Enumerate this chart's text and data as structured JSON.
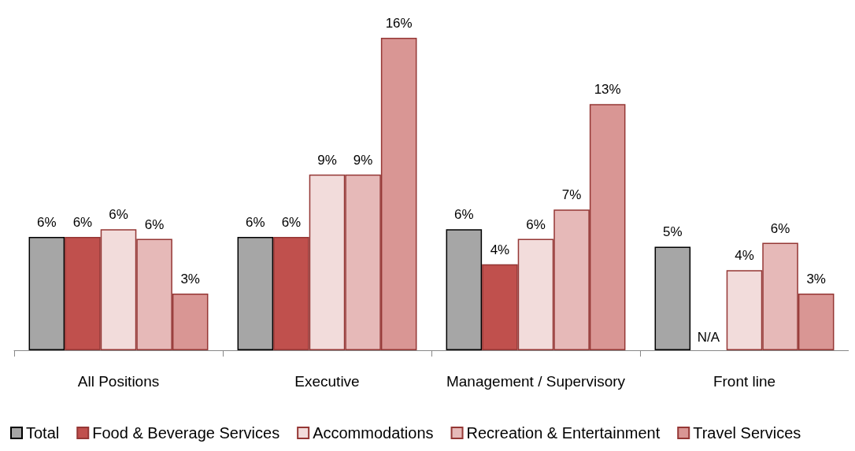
{
  "chart_data": {
    "type": "bar",
    "categories": [
      "All Positions",
      "Executive",
      "Management / Supervisory",
      "Front line"
    ],
    "series": [
      {
        "name": "Total",
        "color": "#a6a6a6",
        "values": [
          5.8,
          5.8,
          6.2,
          5.3
        ],
        "value_labels": [
          "6%",
          "6%",
          "6%",
          "5%"
        ]
      },
      {
        "name": "Food & Beverage Services",
        "color": "#c0504d",
        "values": [
          5.8,
          5.8,
          4.4,
          null
        ],
        "value_labels": [
          "6%",
          "6%",
          "4%",
          "N/A"
        ]
      },
      {
        "name": "Accommodations",
        "color": "#f2dcdb",
        "values": [
          6.2,
          9.0,
          5.7,
          4.1
        ],
        "value_labels": [
          "6%",
          "9%",
          "6%",
          "4%"
        ]
      },
      {
        "name": "Recreation & Entertainment",
        "color": "#e6b9b8",
        "values": [
          5.7,
          9.0,
          7.2,
          5.5
        ],
        "value_labels": [
          "6%",
          "9%",
          "7%",
          "6%"
        ]
      },
      {
        "name": "Travel Services",
        "color": "#d99694",
        "values": [
          2.9,
          16.0,
          12.6,
          2.9
        ],
        "value_labels": [
          "3%",
          "16%",
          "13%",
          "3%"
        ]
      }
    ],
    "legend": "bottom",
    "grid": false
  }
}
